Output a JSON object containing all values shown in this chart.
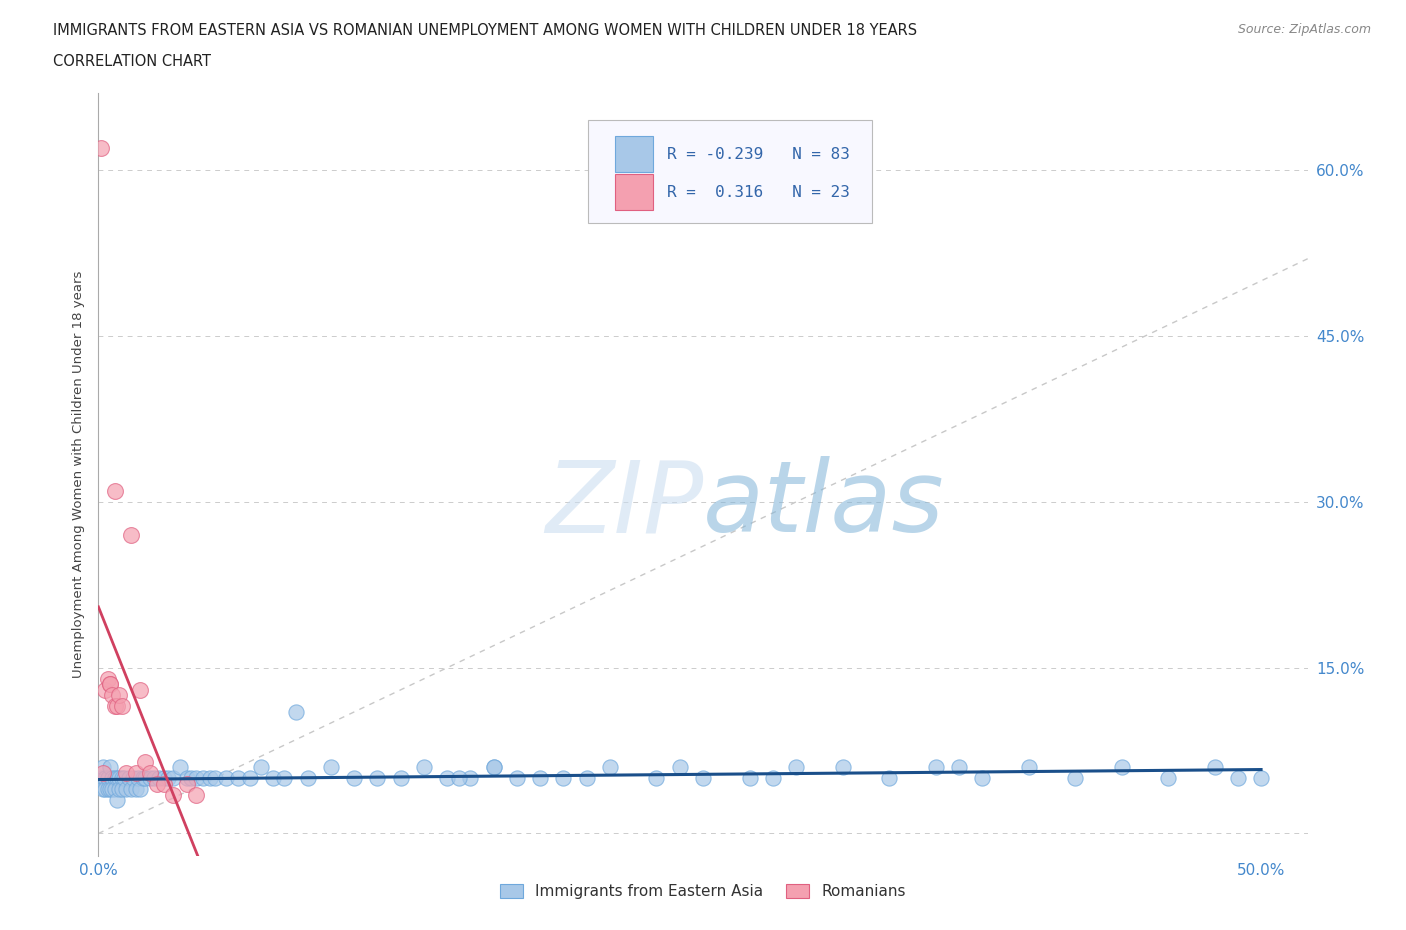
{
  "title_line1": "IMMIGRANTS FROM EASTERN ASIA VS ROMANIAN UNEMPLOYMENT AMONG WOMEN WITH CHILDREN UNDER 18 YEARS",
  "title_line2": "CORRELATION CHART",
  "source_text": "Source: ZipAtlas.com",
  "ylabel": "Unemployment Among Women with Children Under 18 years",
  "xlim": [
    0.0,
    0.52
  ],
  "ylim": [
    -0.02,
    0.67
  ],
  "yticks": [
    0.0,
    0.15,
    0.3,
    0.45,
    0.6
  ],
  "xticks": [
    0.0,
    0.1,
    0.2,
    0.3,
    0.4,
    0.5
  ],
  "xtick_labels": [
    "0.0%",
    "",
    "",
    "",
    "",
    "50.0%"
  ],
  "ytick_labels_right": [
    "",
    "15.0%",
    "30.0%",
    "45.0%",
    "60.0%"
  ],
  "blue_color": "#a8c8e8",
  "pink_color": "#f4a0b0",
  "blue_edge_color": "#6fa8dc",
  "pink_edge_color": "#e06080",
  "blue_line_color": "#1a4f8a",
  "pink_line_color": "#d04060",
  "diagonal_color": "#c8c8c8",
  "watermark_zip": "ZIP",
  "watermark_atlas": "atlas",
  "legend_r_blue": "R = -0.239",
  "legend_n_blue": "N = 83",
  "legend_r_pink": "R =  0.316",
  "legend_n_pink": "N = 23",
  "blue_scatter_x": [
    0.001,
    0.002,
    0.002,
    0.003,
    0.003,
    0.004,
    0.004,
    0.005,
    0.005,
    0.006,
    0.006,
    0.007,
    0.007,
    0.008,
    0.008,
    0.009,
    0.009,
    0.01,
    0.01,
    0.011,
    0.012,
    0.013,
    0.014,
    0.015,
    0.016,
    0.017,
    0.018,
    0.019,
    0.02,
    0.022,
    0.024,
    0.026,
    0.028,
    0.03,
    0.032,
    0.035,
    0.038,
    0.04,
    0.042,
    0.045,
    0.048,
    0.05,
    0.055,
    0.06,
    0.065,
    0.07,
    0.075,
    0.08,
    0.085,
    0.09,
    0.1,
    0.11,
    0.12,
    0.13,
    0.14,
    0.15,
    0.16,
    0.17,
    0.18,
    0.2,
    0.22,
    0.24,
    0.26,
    0.28,
    0.3,
    0.32,
    0.34,
    0.36,
    0.38,
    0.4,
    0.42,
    0.44,
    0.46,
    0.48,
    0.49,
    0.5,
    0.37,
    0.29,
    0.25,
    0.21,
    0.19,
    0.17,
    0.155
  ],
  "blue_scatter_y": [
    0.05,
    0.06,
    0.04,
    0.05,
    0.04,
    0.05,
    0.04,
    0.06,
    0.04,
    0.05,
    0.04,
    0.05,
    0.04,
    0.05,
    0.03,
    0.05,
    0.04,
    0.05,
    0.04,
    0.05,
    0.04,
    0.05,
    0.04,
    0.05,
    0.04,
    0.05,
    0.04,
    0.05,
    0.05,
    0.05,
    0.05,
    0.05,
    0.05,
    0.05,
    0.05,
    0.06,
    0.05,
    0.05,
    0.05,
    0.05,
    0.05,
    0.05,
    0.05,
    0.05,
    0.05,
    0.06,
    0.05,
    0.05,
    0.11,
    0.05,
    0.06,
    0.05,
    0.05,
    0.05,
    0.06,
    0.05,
    0.05,
    0.06,
    0.05,
    0.05,
    0.06,
    0.05,
    0.05,
    0.05,
    0.06,
    0.06,
    0.05,
    0.06,
    0.05,
    0.06,
    0.05,
    0.06,
    0.05,
    0.06,
    0.05,
    0.05,
    0.06,
    0.05,
    0.06,
    0.05,
    0.05,
    0.06,
    0.05
  ],
  "pink_scatter_x": [
    0.001,
    0.002,
    0.003,
    0.004,
    0.005,
    0.005,
    0.006,
    0.007,
    0.007,
    0.008,
    0.009,
    0.01,
    0.012,
    0.014,
    0.016,
    0.018,
    0.02,
    0.022,
    0.025,
    0.028,
    0.032,
    0.038,
    0.042
  ],
  "pink_scatter_y": [
    0.62,
    0.055,
    0.13,
    0.14,
    0.135,
    0.135,
    0.125,
    0.115,
    0.31,
    0.115,
    0.125,
    0.115,
    0.055,
    0.27,
    0.055,
    0.13,
    0.065,
    0.055,
    0.045,
    0.045,
    0.035,
    0.045,
    0.035
  ],
  "pink_line_x_start": 0.0,
  "pink_line_x_end": 0.065,
  "blue_line_x_start": 0.0,
  "blue_line_x_end": 0.5
}
